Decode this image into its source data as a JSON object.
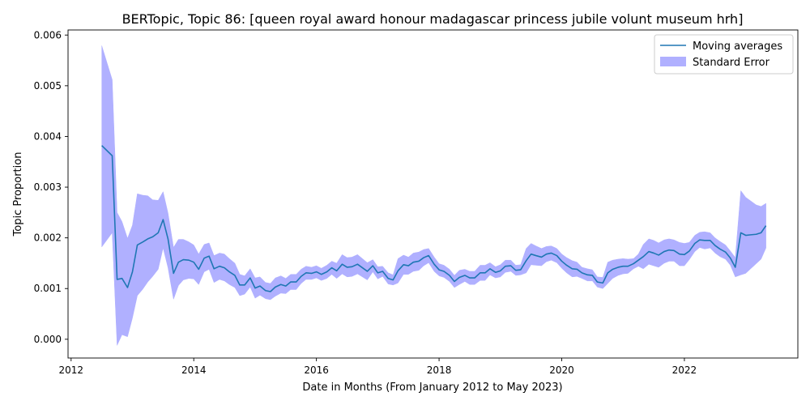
{
  "chart_data": {
    "type": "line",
    "title": "BERTopic, Topic 86: [queen royal award honour madagascar princess jubile volunt museum hrh]",
    "xlabel": "Date in Months (From January 2012 to May 2023)",
    "ylabel": "Topic Proportion",
    "xlim": [
      2011.95,
      2023.85
    ],
    "ylim": [
      -0.00037,
      0.0061
    ],
    "x_ticks": [
      2012,
      2014,
      2016,
      2018,
      2020,
      2022
    ],
    "x_tick_labels": [
      "2012",
      "2014",
      "2016",
      "2018",
      "2020",
      "2022"
    ],
    "y_ticks": [
      0.0,
      0.001,
      0.002,
      0.003,
      0.004,
      0.005,
      0.006
    ],
    "y_tick_labels": [
      "0.000",
      "0.001",
      "0.002",
      "0.003",
      "0.004",
      "0.005",
      "0.006"
    ],
    "legend": {
      "placement": "top-right",
      "entries": [
        "Moving averages",
        "Standard Error"
      ]
    },
    "grid": false,
    "colors": {
      "line": "#1f77b4",
      "band": "#b0b0ff"
    },
    "series": [
      {
        "name": "Moving averages",
        "x": [
          2012.5,
          2012.67,
          2012.75,
          2012.83,
          2012.92,
          2013.0,
          2013.08,
          2013.17,
          2013.25,
          2013.33,
          2013.42,
          2013.5,
          2013.58,
          2013.67,
          2013.75,
          2013.83,
          2013.92,
          2014.0,
          2014.08,
          2014.17,
          2014.25,
          2014.33,
          2014.42,
          2014.5,
          2014.58,
          2014.67,
          2014.75,
          2014.83,
          2014.92,
          2015.0,
          2015.08,
          2015.17,
          2015.25,
          2015.33,
          2015.42,
          2015.5,
          2015.58,
          2015.67,
          2015.75,
          2015.83,
          2015.92,
          2016.0,
          2016.08,
          2016.17,
          2016.25,
          2016.33,
          2016.42,
          2016.5,
          2016.58,
          2016.67,
          2016.75,
          2016.83,
          2016.92,
          2017.0,
          2017.08,
          2017.17,
          2017.25,
          2017.33,
          2017.42,
          2017.5,
          2017.58,
          2017.67,
          2017.75,
          2017.83,
          2017.92,
          2018.0,
          2018.08,
          2018.17,
          2018.25,
          2018.33,
          2018.42,
          2018.5,
          2018.58,
          2018.67,
          2018.75,
          2018.83,
          2018.92,
          2019.0,
          2019.08,
          2019.17,
          2019.25,
          2019.33,
          2019.42,
          2019.5,
          2019.58,
          2019.67,
          2019.75,
          2019.83,
          2019.92,
          2020.0,
          2020.08,
          2020.17,
          2020.25,
          2020.33,
          2020.42,
          2020.5,
          2020.58,
          2020.67,
          2020.75,
          2020.83,
          2020.92,
          2021.0,
          2021.08,
          2021.17,
          2021.25,
          2021.33,
          2021.42,
          2021.5,
          2021.58,
          2021.67,
          2021.75,
          2021.83,
          2021.92,
          2022.0,
          2022.08,
          2022.17,
          2022.25,
          2022.33,
          2022.42,
          2022.5,
          2022.58,
          2022.67,
          2022.75,
          2022.83,
          2022.92,
          2023.0,
          2023.08,
          2023.17,
          2023.25,
          2023.33
        ],
        "values": [
          0.00382,
          0.00362,
          0.00118,
          0.0012,
          0.00102,
          0.00133,
          0.00186,
          0.00192,
          0.00198,
          0.00202,
          0.0021,
          0.00236,
          0.00198,
          0.0013,
          0.00152,
          0.00157,
          0.00156,
          0.00152,
          0.00138,
          0.0016,
          0.00164,
          0.00139,
          0.00144,
          0.00141,
          0.00133,
          0.00126,
          0.00107,
          0.00107,
          0.00121,
          0.00101,
          0.00105,
          0.00096,
          0.00094,
          0.00103,
          0.00108,
          0.00105,
          0.00113,
          0.00113,
          0.00124,
          0.00131,
          0.0013,
          0.00133,
          0.00128,
          0.00133,
          0.00141,
          0.00135,
          0.00148,
          0.00142,
          0.00143,
          0.00148,
          0.00141,
          0.00134,
          0.00145,
          0.00131,
          0.00134,
          0.0012,
          0.00117,
          0.00135,
          0.00147,
          0.00145,
          0.00152,
          0.00154,
          0.00161,
          0.00165,
          0.00148,
          0.00137,
          0.00134,
          0.00126,
          0.00114,
          0.00122,
          0.00126,
          0.00121,
          0.00121,
          0.00131,
          0.00131,
          0.00139,
          0.00132,
          0.00135,
          0.00144,
          0.00145,
          0.00136,
          0.00137,
          0.00155,
          0.00168,
          0.00165,
          0.00162,
          0.00168,
          0.0017,
          0.00165,
          0.00154,
          0.00146,
          0.00139,
          0.00138,
          0.00131,
          0.00127,
          0.00126,
          0.00113,
          0.00111,
          0.00131,
          0.00138,
          0.00142,
          0.00144,
          0.00144,
          0.00149,
          0.00156,
          0.00163,
          0.00173,
          0.0017,
          0.00166,
          0.00173,
          0.00176,
          0.00175,
          0.00168,
          0.00167,
          0.00174,
          0.00189,
          0.00196,
          0.00195,
          0.00195,
          0.00185,
          0.00178,
          0.00172,
          0.0016,
          0.00142,
          0.0021,
          0.00205,
          0.00206,
          0.00207,
          0.0021,
          0.00224
        ]
      },
      {
        "name": "Standard Error",
        "x": [
          2012.5,
          2012.67,
          2012.75,
          2012.83,
          2012.92,
          2013.0,
          2013.08,
          2013.17,
          2013.25,
          2013.33,
          2013.42,
          2013.5,
          2013.58,
          2013.67,
          2013.75,
          2013.83,
          2013.92,
          2014.0,
          2014.08,
          2014.17,
          2014.25,
          2014.33,
          2014.42,
          2014.5,
          2014.58,
          2014.67,
          2014.75,
          2014.83,
          2014.92,
          2015.0,
          2015.08,
          2015.17,
          2015.25,
          2015.33,
          2015.42,
          2015.5,
          2015.58,
          2015.67,
          2015.75,
          2015.83,
          2015.92,
          2016.0,
          2016.08,
          2016.17,
          2016.25,
          2016.33,
          2016.42,
          2016.5,
          2016.58,
          2016.67,
          2016.75,
          2016.83,
          2016.92,
          2017.0,
          2017.08,
          2017.17,
          2017.25,
          2017.33,
          2017.42,
          2017.5,
          2017.58,
          2017.67,
          2017.75,
          2017.83,
          2017.92,
          2018.0,
          2018.08,
          2018.17,
          2018.25,
          2018.33,
          2018.42,
          2018.5,
          2018.58,
          2018.67,
          2018.75,
          2018.83,
          2018.92,
          2019.0,
          2019.08,
          2019.17,
          2019.25,
          2019.33,
          2019.42,
          2019.5,
          2019.58,
          2019.67,
          2019.75,
          2019.83,
          2019.92,
          2020.0,
          2020.08,
          2020.17,
          2020.25,
          2020.33,
          2020.42,
          2020.5,
          2020.58,
          2020.67,
          2020.75,
          2020.83,
          2020.92,
          2021.0,
          2021.08,
          2021.17,
          2021.25,
          2021.33,
          2021.42,
          2021.5,
          2021.58,
          2021.67,
          2021.75,
          2021.83,
          2021.92,
          2022.0,
          2022.08,
          2022.17,
          2022.25,
          2022.33,
          2022.42,
          2022.5,
          2022.58,
          2022.67,
          2022.75,
          2022.83,
          2022.92,
          2023.0,
          2023.08,
          2023.17,
          2023.25,
          2023.33
        ],
        "upper": [
          0.00579,
          0.00512,
          0.0025,
          0.00232,
          0.00199,
          0.00225,
          0.00287,
          0.00284,
          0.00283,
          0.00275,
          0.00274,
          0.00291,
          0.00249,
          0.00181,
          0.00197,
          0.00197,
          0.00192,
          0.00186,
          0.00168,
          0.00187,
          0.0019,
          0.00165,
          0.0017,
          0.00168,
          0.00159,
          0.0015,
          0.00128,
          0.00125,
          0.00139,
          0.00121,
          0.00123,
          0.00112,
          0.0011,
          0.00121,
          0.00125,
          0.0012,
          0.00128,
          0.00128,
          0.00138,
          0.00144,
          0.00142,
          0.00145,
          0.0014,
          0.00146,
          0.00154,
          0.0015,
          0.00167,
          0.00161,
          0.00162,
          0.00167,
          0.00159,
          0.00151,
          0.00157,
          0.00143,
          0.00144,
          0.00131,
          0.00127,
          0.00159,
          0.00166,
          0.00162,
          0.0017,
          0.00172,
          0.00177,
          0.00179,
          0.00162,
          0.00149,
          0.00146,
          0.00138,
          0.00126,
          0.00136,
          0.00138,
          0.00134,
          0.00134,
          0.00146,
          0.00146,
          0.00151,
          0.00143,
          0.00147,
          0.00156,
          0.00156,
          0.00146,
          0.00147,
          0.00179,
          0.00189,
          0.00184,
          0.00179,
          0.00183,
          0.00184,
          0.00179,
          0.00168,
          0.00161,
          0.00155,
          0.00152,
          0.00142,
          0.00139,
          0.00137,
          0.00123,
          0.00122,
          0.00152,
          0.00156,
          0.00158,
          0.00159,
          0.00158,
          0.00159,
          0.00168,
          0.00187,
          0.00198,
          0.00195,
          0.0019,
          0.00196,
          0.00198,
          0.00196,
          0.00191,
          0.00189,
          0.00191,
          0.00205,
          0.00211,
          0.00212,
          0.0021,
          0.002,
          0.00193,
          0.00186,
          0.00174,
          0.00161,
          0.00293,
          0.0028,
          0.00273,
          0.00265,
          0.00262,
          0.00268
        ],
        "lower": [
          0.00182,
          0.0021,
          -0.00012,
          9e-05,
          5e-05,
          0.00042,
          0.00086,
          0.00099,
          0.00113,
          0.00124,
          0.00138,
          0.0018,
          0.00141,
          0.00079,
          0.00106,
          0.00117,
          0.0012,
          0.00119,
          0.00108,
          0.00133,
          0.00138,
          0.00112,
          0.00118,
          0.00115,
          0.00108,
          0.00102,
          0.00086,
          0.00089,
          0.00103,
          0.00081,
          0.00087,
          0.0008,
          0.00078,
          0.00085,
          0.00091,
          0.0009,
          0.00098,
          0.00098,
          0.0011,
          0.00118,
          0.00118,
          0.00121,
          0.00116,
          0.0012,
          0.00128,
          0.0012,
          0.00129,
          0.00123,
          0.00124,
          0.00129,
          0.00123,
          0.00117,
          0.00133,
          0.00119,
          0.00124,
          0.00109,
          0.00107,
          0.00111,
          0.00128,
          0.00128,
          0.00134,
          0.00136,
          0.00145,
          0.00151,
          0.00134,
          0.00125,
          0.00122,
          0.00114,
          0.00102,
          0.00108,
          0.00114,
          0.00108,
          0.00108,
          0.00116,
          0.00116,
          0.00127,
          0.00121,
          0.00123,
          0.00132,
          0.00134,
          0.00126,
          0.00127,
          0.00131,
          0.00147,
          0.00146,
          0.00145,
          0.00153,
          0.00156,
          0.00151,
          0.0014,
          0.00131,
          0.00123,
          0.00124,
          0.0012,
          0.00115,
          0.00115,
          0.00103,
          0.001,
          0.0011,
          0.0012,
          0.00126,
          0.00129,
          0.0013,
          0.00139,
          0.00144,
          0.00139,
          0.00148,
          0.00145,
          0.00142,
          0.0015,
          0.00154,
          0.00154,
          0.00145,
          0.00145,
          0.00157,
          0.00173,
          0.00181,
          0.00178,
          0.0018,
          0.0017,
          0.00163,
          0.00158,
          0.00146,
          0.00123,
          0.00127,
          0.0013,
          0.00139,
          0.00149,
          0.00158,
          0.0018
        ]
      }
    ]
  }
}
